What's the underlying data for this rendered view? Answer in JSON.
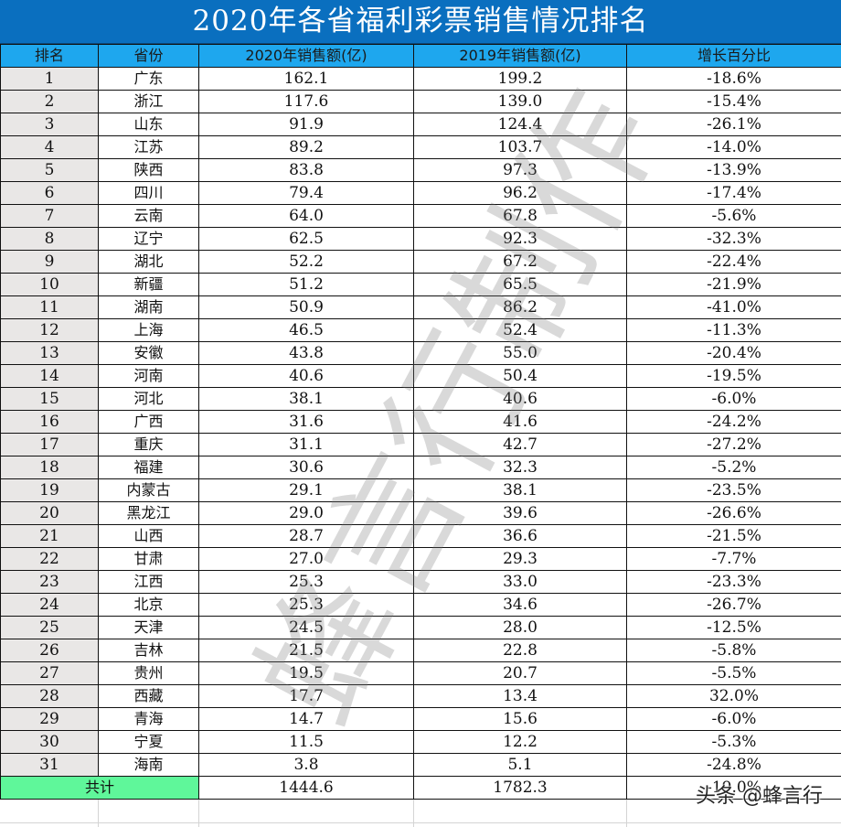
{
  "title": "2020年各省福利彩票销售情况排名",
  "columns": [
    "排名",
    "省份",
    "2020年销售额(亿)",
    "2019年销售额(亿)",
    "增长百分比"
  ],
  "rows": [
    {
      "rank": "1",
      "province": "广东",
      "sales2020": "162.1",
      "sales2019": "199.2",
      "growth": "-18.6%"
    },
    {
      "rank": "2",
      "province": "浙江",
      "sales2020": "117.6",
      "sales2019": "139.0",
      "growth": "-15.4%"
    },
    {
      "rank": "3",
      "province": "山东",
      "sales2020": "91.9",
      "sales2019": "124.4",
      "growth": "-26.1%"
    },
    {
      "rank": "4",
      "province": "江苏",
      "sales2020": "89.2",
      "sales2019": "103.7",
      "growth": "-14.0%"
    },
    {
      "rank": "5",
      "province": "陕西",
      "sales2020": "83.8",
      "sales2019": "97.3",
      "growth": "-13.9%"
    },
    {
      "rank": "6",
      "province": "四川",
      "sales2020": "79.4",
      "sales2019": "96.2",
      "growth": "-17.4%"
    },
    {
      "rank": "7",
      "province": "云南",
      "sales2020": "64.0",
      "sales2019": "67.8",
      "growth": "-5.6%"
    },
    {
      "rank": "8",
      "province": "辽宁",
      "sales2020": "62.5",
      "sales2019": "92.3",
      "growth": "-32.3%"
    },
    {
      "rank": "9",
      "province": "湖北",
      "sales2020": "52.2",
      "sales2019": "67.2",
      "growth": "-22.4%"
    },
    {
      "rank": "10",
      "province": "新疆",
      "sales2020": "51.2",
      "sales2019": "65.5",
      "growth": "-21.9%"
    },
    {
      "rank": "11",
      "province": "湖南",
      "sales2020": "50.9",
      "sales2019": "86.2",
      "growth": "-41.0%"
    },
    {
      "rank": "12",
      "province": "上海",
      "sales2020": "46.5",
      "sales2019": "52.4",
      "growth": "-11.3%"
    },
    {
      "rank": "13",
      "province": "安徽",
      "sales2020": "43.8",
      "sales2019": "55.0",
      "growth": "-20.4%"
    },
    {
      "rank": "14",
      "province": "河南",
      "sales2020": "40.6",
      "sales2019": "50.4",
      "growth": "-19.5%"
    },
    {
      "rank": "15",
      "province": "河北",
      "sales2020": "38.1",
      "sales2019": "40.6",
      "growth": "-6.0%"
    },
    {
      "rank": "16",
      "province": "广西",
      "sales2020": "31.6",
      "sales2019": "41.6",
      "growth": "-24.2%"
    },
    {
      "rank": "17",
      "province": "重庆",
      "sales2020": "31.1",
      "sales2019": "42.7",
      "growth": "-27.2%"
    },
    {
      "rank": "18",
      "province": "福建",
      "sales2020": "30.6",
      "sales2019": "32.3",
      "growth": "-5.2%"
    },
    {
      "rank": "19",
      "province": "内蒙古",
      "sales2020": "29.1",
      "sales2019": "38.1",
      "growth": "-23.5%"
    },
    {
      "rank": "20",
      "province": "黑龙江",
      "sales2020": "29.0",
      "sales2019": "39.6",
      "growth": "-26.6%"
    },
    {
      "rank": "21",
      "province": "山西",
      "sales2020": "28.7",
      "sales2019": "36.6",
      "growth": "-21.5%"
    },
    {
      "rank": "22",
      "province": "甘肃",
      "sales2020": "27.0",
      "sales2019": "29.3",
      "growth": "-7.7%"
    },
    {
      "rank": "23",
      "province": "江西",
      "sales2020": "25.3",
      "sales2019": "33.0",
      "growth": "-23.3%"
    },
    {
      "rank": "24",
      "province": "北京",
      "sales2020": "25.3",
      "sales2019": "34.6",
      "growth": "-26.7%"
    },
    {
      "rank": "25",
      "province": "天津",
      "sales2020": "24.5",
      "sales2019": "28.0",
      "growth": "-12.5%"
    },
    {
      "rank": "26",
      "province": "吉林",
      "sales2020": "21.5",
      "sales2019": "22.8",
      "growth": "-5.8%"
    },
    {
      "rank": "27",
      "province": "贵州",
      "sales2020": "19.5",
      "sales2019": "20.7",
      "growth": "-5.5%"
    },
    {
      "rank": "28",
      "province": "西藏",
      "sales2020": "17.7",
      "sales2019": "13.4",
      "growth": "32.0%"
    },
    {
      "rank": "29",
      "province": "青海",
      "sales2020": "14.7",
      "sales2019": "15.6",
      "growth": "-6.0%"
    },
    {
      "rank": "30",
      "province": "宁夏",
      "sales2020": "11.5",
      "sales2019": "12.2",
      "growth": "-5.3%"
    },
    {
      "rank": "31",
      "province": "海南",
      "sales2020": "3.8",
      "sales2019": "5.1",
      "growth": "-24.8%"
    }
  ],
  "total": {
    "label": "共计",
    "sales2020": "1444.6",
    "sales2019": "1782.3",
    "growth": "-19.0%"
  },
  "watermark": "蜂言行制作",
  "credit": "头条 @蜂言行",
  "colors": {
    "title_bg": "#0A6FBF",
    "header_bg": "#1EA7EE",
    "rank_bg": "#E9E7E6",
    "total_bg": "#5FF79A"
  }
}
